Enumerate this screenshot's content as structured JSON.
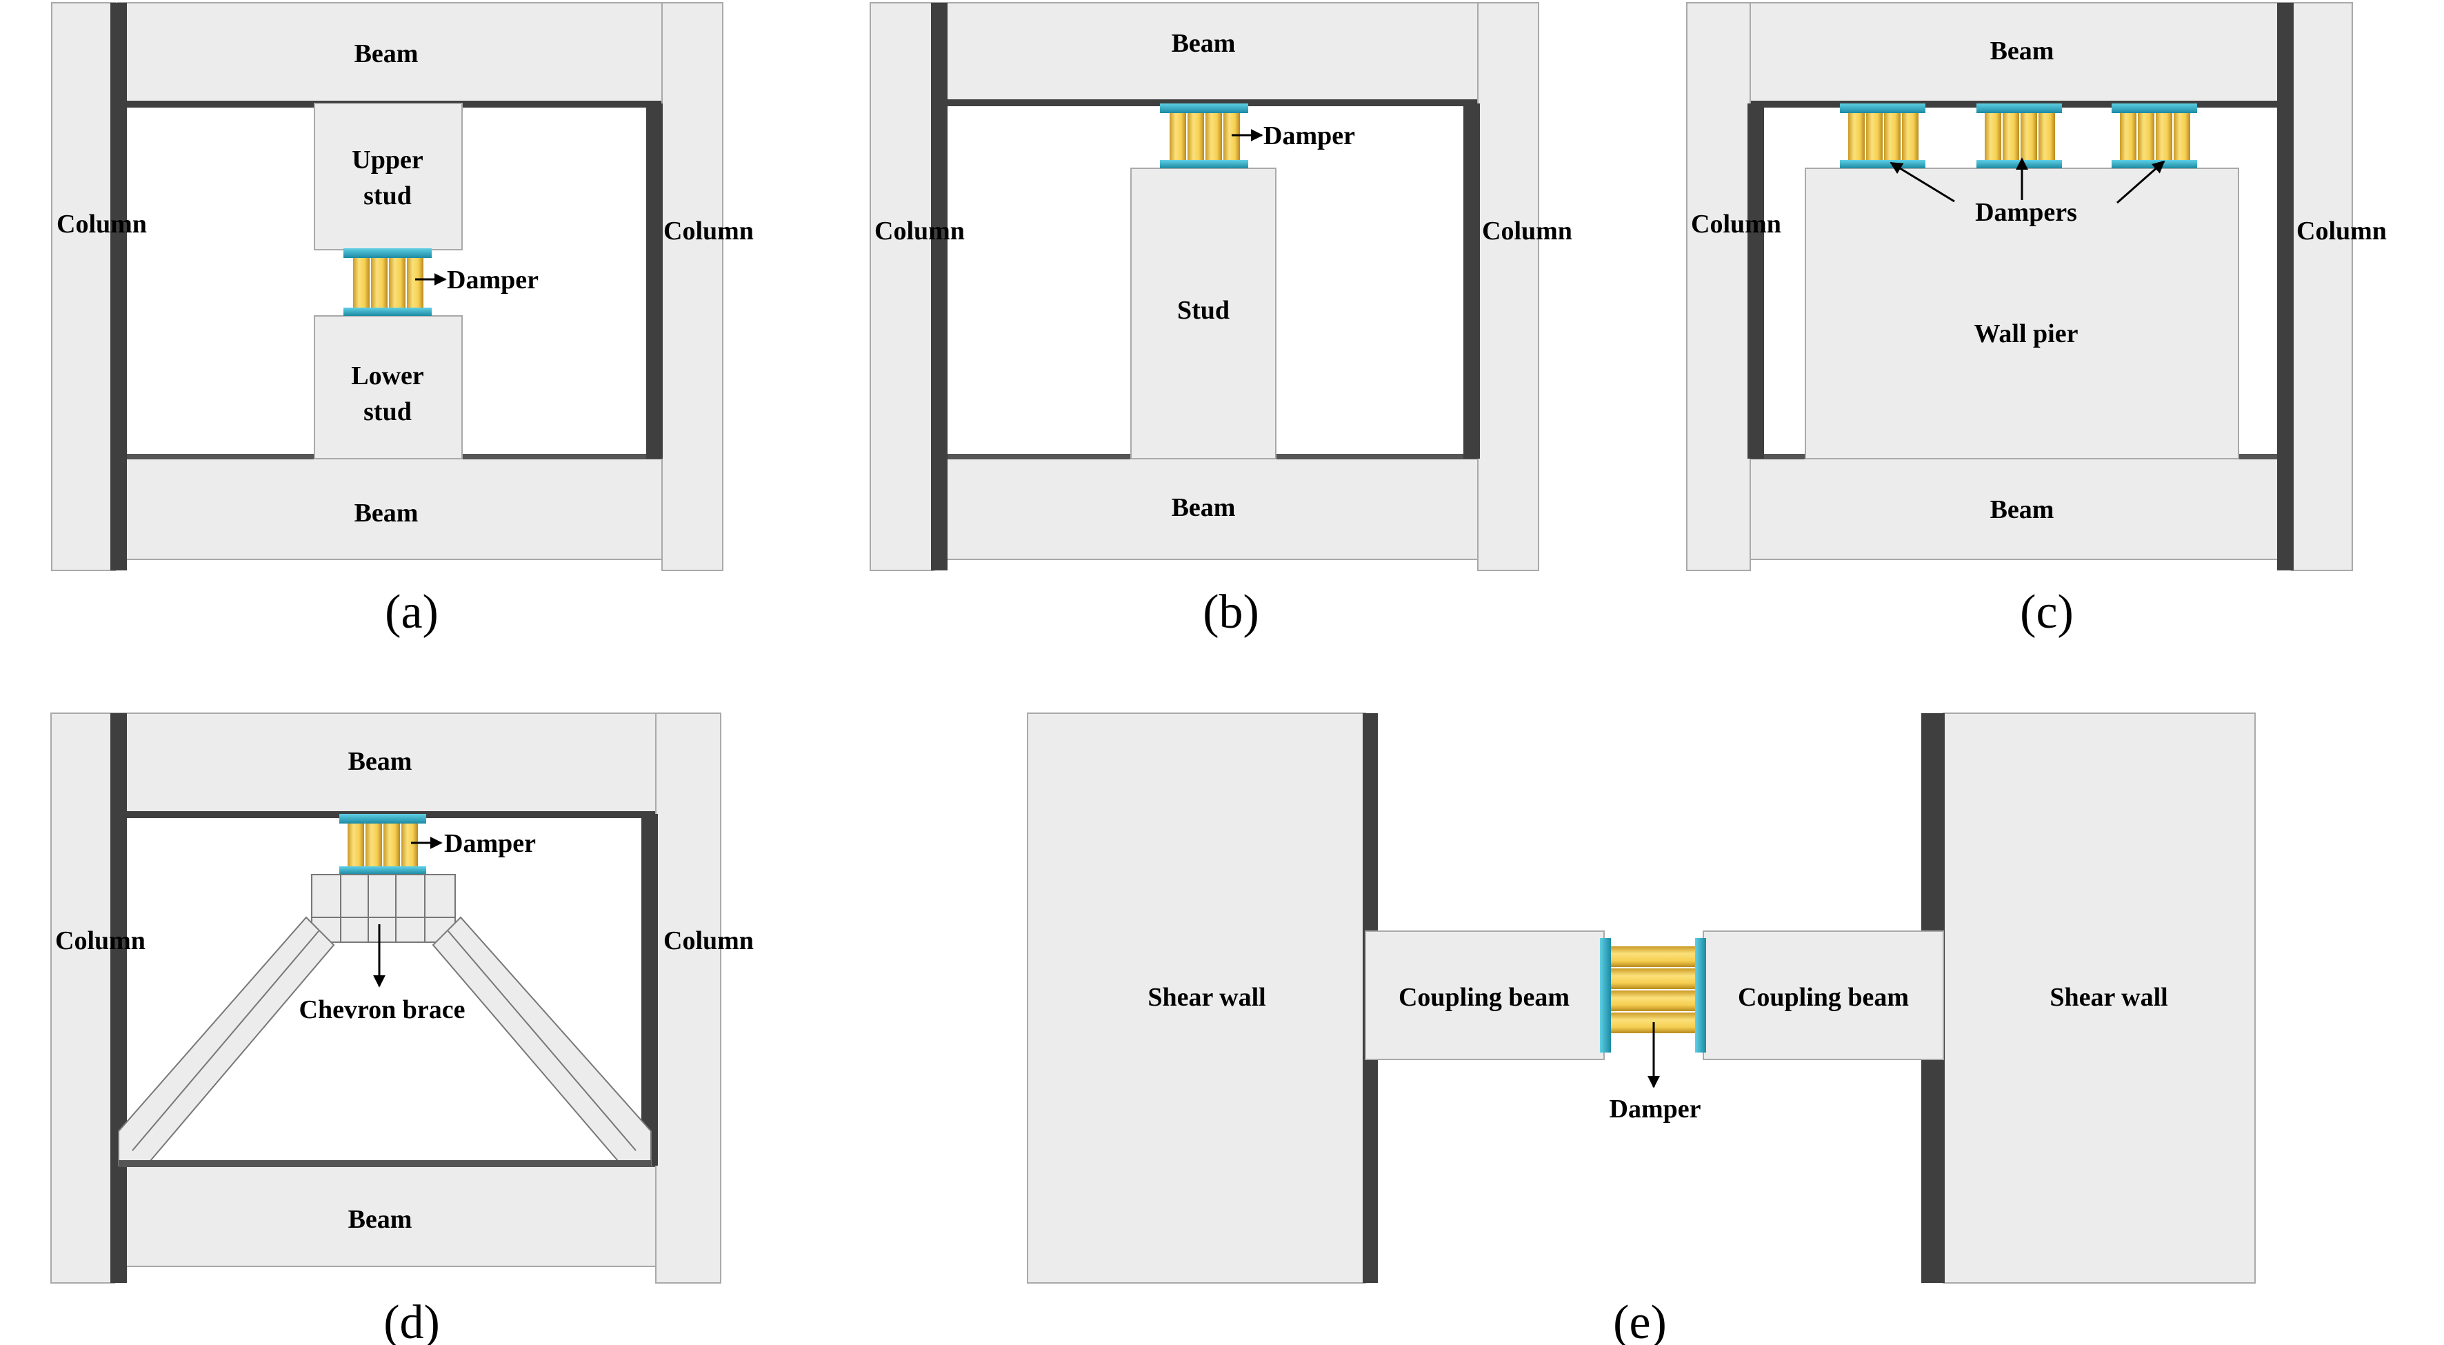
{
  "panels": {
    "a": {
      "caption": "(a)",
      "beam_top": "Beam",
      "beam_bottom": "Beam",
      "column_left": "Column",
      "column_right": "Column",
      "upper_stud_1": "Upper",
      "upper_stud_2": "stud",
      "lower_stud_1": "Lower",
      "lower_stud_2": "stud",
      "damper": "Damper"
    },
    "b": {
      "caption": "(b)",
      "beam_top": "Beam",
      "beam_bottom": "Beam",
      "column_left": "Column",
      "column_right": "Column",
      "stud": "Stud",
      "damper": "Damper"
    },
    "c": {
      "caption": "(c)",
      "beam_top": "Beam",
      "beam_bottom": "Beam",
      "column_left": "Column",
      "column_right": "Column",
      "wall_pier": "Wall pier",
      "dampers": "Dampers"
    },
    "d": {
      "caption": "(d)",
      "beam_top": "Beam",
      "beam_bottom": "Beam",
      "column_left": "Column",
      "column_right": "Column",
      "brace": "Chevron brace",
      "damper": "Damper"
    },
    "e": {
      "caption": "(e)",
      "shear_wall_left": "Shear wall",
      "shear_wall_right": "Shear wall",
      "coupling_beam_left": "Coupling beam",
      "coupling_beam_right": "Coupling beam",
      "damper": "Damper"
    }
  },
  "colors": {
    "concrete": "#ececec",
    "concrete_edge": "#a9a9a9",
    "shadow": "#3f3f3f",
    "damper_core": "#f6cf52",
    "damper_core_dark": "#c99a25",
    "damper_plate": "#2fb4cf",
    "damper_plate_dark": "#1b7f96"
  }
}
